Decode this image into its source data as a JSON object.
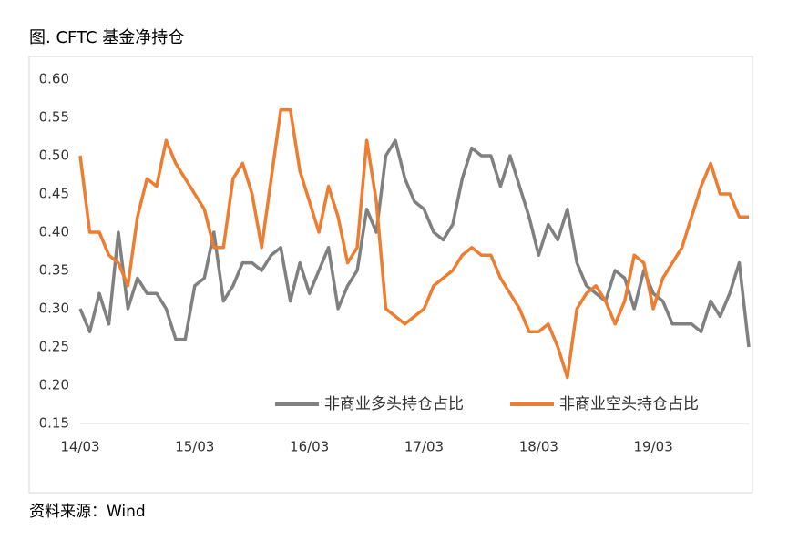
{
  "title": "图. CFTC 基金净持仓",
  "source": "资料来源：Wind",
  "chart_data": {
    "type": "line",
    "categories": [
      "14/03",
      null,
      null,
      null,
      null,
      null,
      null,
      null,
      null,
      null,
      null,
      null,
      "15/03",
      null,
      null,
      null,
      null,
      null,
      null,
      null,
      null,
      null,
      null,
      null,
      "16/03",
      null,
      null,
      null,
      null,
      null,
      null,
      null,
      null,
      null,
      null,
      null,
      "17/03",
      null,
      null,
      null,
      null,
      null,
      null,
      null,
      null,
      null,
      null,
      null,
      "18/03",
      null,
      null,
      null,
      null,
      null,
      null,
      null,
      null,
      null,
      null,
      null,
      "19/03",
      null,
      null,
      null,
      null,
      null,
      null,
      null,
      null,
      null,
      null
    ],
    "series": [
      {
        "name": "非商业多头持仓占比",
        "color": "#808080",
        "values": [
          0.3,
          0.27,
          0.32,
          0.28,
          0.4,
          0.3,
          0.34,
          0.32,
          0.32,
          0.3,
          0.26,
          0.26,
          0.33,
          0.34,
          0.4,
          0.31,
          0.33,
          0.36,
          0.36,
          0.35,
          0.37,
          0.38,
          0.31,
          0.36,
          0.32,
          0.35,
          0.38,
          0.3,
          0.33,
          0.35,
          0.43,
          0.4,
          0.5,
          0.52,
          0.47,
          0.44,
          0.43,
          0.4,
          0.39,
          0.41,
          0.47,
          0.51,
          0.5,
          0.5,
          0.46,
          0.5,
          0.46,
          0.42,
          0.37,
          0.41,
          0.39,
          0.43,
          0.36,
          0.33,
          0.32,
          0.31,
          0.35,
          0.34,
          0.3,
          0.35,
          0.32,
          0.31,
          0.28,
          0.28,
          0.28,
          0.27,
          0.31,
          0.29,
          0.32,
          0.36,
          0.25
        ]
      },
      {
        "name": "非商业空头持仓占比",
        "color": "#ed7d31",
        "values": [
          0.5,
          0.4,
          0.4,
          0.37,
          0.36,
          0.33,
          0.42,
          0.47,
          0.46,
          0.52,
          0.49,
          0.47,
          0.45,
          0.43,
          0.38,
          0.38,
          0.47,
          0.49,
          0.45,
          0.38,
          0.47,
          0.56,
          0.56,
          0.48,
          0.44,
          0.4,
          0.46,
          0.42,
          0.36,
          0.38,
          0.52,
          0.44,
          0.3,
          0.29,
          0.28,
          0.29,
          0.3,
          0.33,
          0.34,
          0.35,
          0.37,
          0.38,
          0.37,
          0.37,
          0.34,
          0.32,
          0.3,
          0.27,
          0.27,
          0.28,
          0.25,
          0.21,
          0.3,
          0.32,
          0.33,
          0.31,
          0.28,
          0.31,
          0.37,
          0.36,
          0.3,
          0.34,
          0.36,
          0.38,
          0.42,
          0.46,
          0.49,
          0.45,
          0.45,
          0.42,
          0.42
        ]
      }
    ],
    "ylim": [
      0.15,
      0.6
    ],
    "yticks": [
      0.15,
      {
        "value": 0.2,
        "label": "0.20"
      },
      0.25,
      {
        "value": 0.3,
        "label": "0.30"
      },
      0.35,
      {
        "value": 0.4,
        "label": "0.40"
      },
      0.45,
      {
        "value": 0.5,
        "label": "0.50"
      },
      0.55,
      {
        "value": 0.6,
        "label": "0.60"
      }
    ],
    "grid": false,
    "legend": "bottom"
  }
}
